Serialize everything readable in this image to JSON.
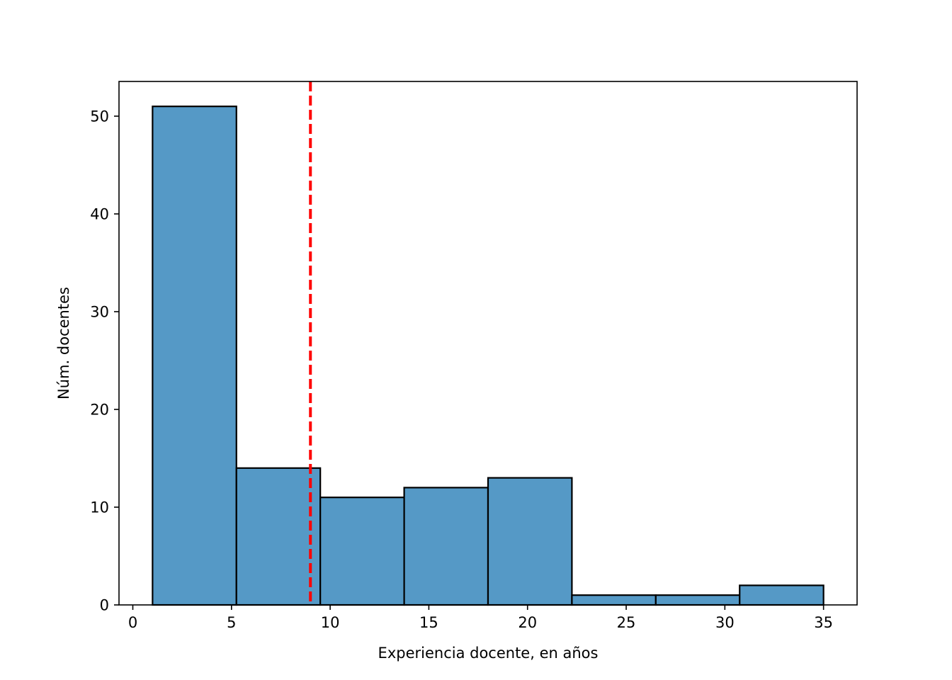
{
  "chart_data": {
    "type": "bar",
    "title": "",
    "xlabel": "Experiencia docente, en años",
    "ylabel": "Núm. docentes",
    "xlim": [
      -0.7,
      36.7
    ],
    "ylim": [
      0,
      53.55
    ],
    "xticks": [
      0,
      5,
      10,
      15,
      20,
      25,
      30,
      35
    ],
    "yticks": [
      0,
      10,
      20,
      30,
      40,
      50
    ],
    "bin_edges": [
      1.0,
      5.25,
      9.5,
      13.75,
      18.0,
      22.25,
      26.5,
      30.75,
      35.0
    ],
    "values": [
      51,
      14,
      11,
      12,
      13,
      1,
      1,
      2
    ],
    "reference_line": {
      "x": 9.0,
      "style": "dashed",
      "color": "#ff0000"
    },
    "bar_color": "#5599c6",
    "grid": false,
    "legend": "none"
  }
}
